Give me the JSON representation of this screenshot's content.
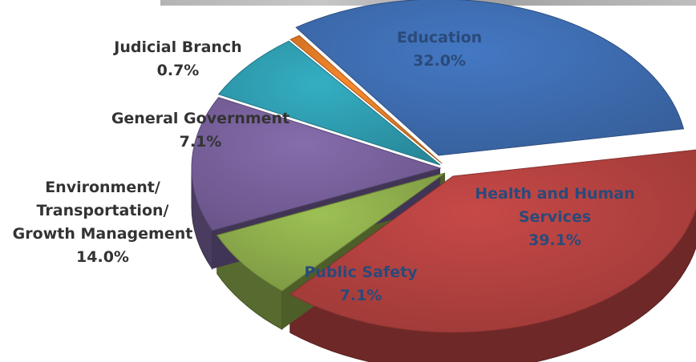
{
  "chart_data": {
    "type": "pie",
    "title": "",
    "slices": [
      {
        "label": "Education",
        "label_lines": [
          "Education"
        ],
        "value": 32.0,
        "value_text": "32.0%",
        "color": "#3D6BAE"
      },
      {
        "label": "Health and Human Services",
        "label_lines": [
          "Health and Human",
          "Services"
        ],
        "value": 39.1,
        "value_text": "39.1%",
        "color": "#B1413F"
      },
      {
        "label": "Public Safety",
        "label_lines": [
          "Public Safety"
        ],
        "value": 7.1,
        "value_text": "7.1%",
        "color": "#8CAB4B"
      },
      {
        "label": "Environment/ Transportation/ Growth Management",
        "label_lines": [
          "Environment/",
          "Transportation/",
          "Growth Management"
        ],
        "value": 14.0,
        "value_text": "14.0%",
        "color": "#77609A"
      },
      {
        "label": "General Government",
        "label_lines": [
          "General Government"
        ],
        "value": 7.1,
        "value_text": "7.1%",
        "color": "#2E9BAE"
      },
      {
        "label": "Judicial Branch",
        "label_lines": [
          "Judicial Branch"
        ],
        "value": 0.7,
        "value_text": "0.7%",
        "color": "#E07A26"
      }
    ],
    "label_colors": {
      "inside": "#2a4a7a",
      "outside": "#333333"
    }
  }
}
